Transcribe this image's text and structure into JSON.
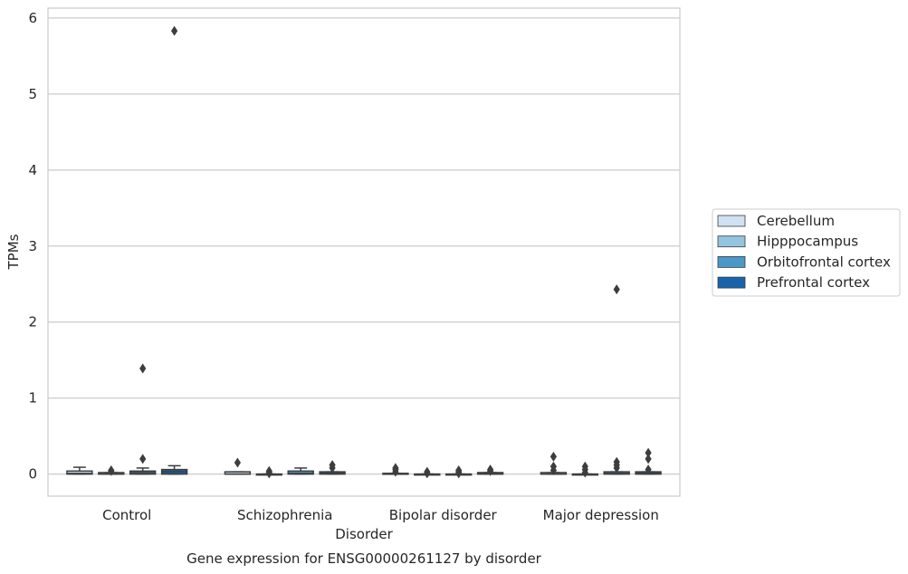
{
  "chart_data": {
    "type": "box",
    "title": "Gene expression for ENSG00000261127 by disorder",
    "xlabel": "Disorder",
    "ylabel": "TPMs",
    "ylim": [
      -0.29,
      6.13
    ],
    "yticks": [
      0,
      1,
      2,
      3,
      4,
      5,
      6
    ],
    "grid": "horizontal",
    "legend_position": "right",
    "categories": [
      "Control",
      "Schizophrenia",
      "Bipolar disorder",
      "Major depression"
    ],
    "series": [
      {
        "name": "Cerebellum",
        "color": "#d0e1f2",
        "boxes": [
          {
            "q1": 0.0,
            "median": 0.01,
            "q3": 0.04,
            "whisker_low": 0.0,
            "whisker_high": 0.09,
            "outliers": []
          },
          {
            "q1": 0.0,
            "median": 0.0,
            "q3": 0.03,
            "whisker_low": 0.0,
            "whisker_high": 0.03,
            "outliers": [
              0.15
            ]
          },
          {
            "q1": 0.0,
            "median": 0.0,
            "q3": 0.01,
            "whisker_low": 0.0,
            "whisker_high": 0.01,
            "outliers": [
              0.03,
              0.06,
              0.08
            ]
          },
          {
            "q1": 0.0,
            "median": 0.0,
            "q3": 0.02,
            "whisker_low": 0.0,
            "whisker_high": 0.02,
            "outliers": [
              0.05,
              0.1,
              0.23
            ]
          }
        ]
      },
      {
        "name": "Hipppocampus",
        "color": "#94c4df",
        "boxes": [
          {
            "q1": 0.0,
            "median": 0.0,
            "q3": 0.02,
            "whisker_low": 0.0,
            "whisker_high": 0.02,
            "outliers": [
              0.04,
              0.05
            ]
          },
          {
            "q1": 0.0,
            "median": 0.0,
            "q3": 0.0,
            "whisker_low": 0.0,
            "whisker_high": 0.0,
            "outliers": [
              0.01,
              0.02,
              0.04
            ]
          },
          {
            "q1": 0.0,
            "median": 0.0,
            "q3": 0.0,
            "whisker_low": 0.0,
            "whisker_high": 0.0,
            "outliers": [
              0.01,
              0.03
            ]
          },
          {
            "q1": 0.0,
            "median": 0.0,
            "q3": 0.0,
            "whisker_low": 0.0,
            "whisker_high": 0.0,
            "outliers": [
              0.02,
              0.06,
              0.1
            ]
          }
        ]
      },
      {
        "name": "Orbitofrontal cortex",
        "color": "#4a98c9",
        "boxes": [
          {
            "q1": 0.0,
            "median": 0.02,
            "q3": 0.04,
            "whisker_low": 0.0,
            "whisker_high": 0.08,
            "outliers": [
              0.2,
              1.39
            ]
          },
          {
            "q1": 0.0,
            "median": 0.01,
            "q3": 0.04,
            "whisker_low": 0.0,
            "whisker_high": 0.08,
            "outliers": []
          },
          {
            "q1": 0.0,
            "median": 0.0,
            "q3": 0.0,
            "whisker_low": 0.0,
            "whisker_high": 0.0,
            "outliers": [
              0.01,
              0.03,
              0.05
            ]
          },
          {
            "q1": 0.0,
            "median": 0.01,
            "q3": 0.03,
            "whisker_low": 0.0,
            "whisker_high": 0.03,
            "outliers": [
              0.08,
              0.12,
              0.16,
              2.43
            ]
          }
        ]
      },
      {
        "name": "Prefrontal cortex",
        "color": "#1764ab",
        "boxes": [
          {
            "q1": 0.0,
            "median": 0.03,
            "q3": 0.06,
            "whisker_low": 0.0,
            "whisker_high": 0.11,
            "outliers": [
              5.83
            ]
          },
          {
            "q1": 0.0,
            "median": 0.01,
            "q3": 0.03,
            "whisker_low": 0.0,
            "whisker_high": 0.03,
            "outliers": [
              0.08,
              0.12
            ]
          },
          {
            "q1": 0.0,
            "median": 0.0,
            "q3": 0.02,
            "whisker_low": 0.0,
            "whisker_high": 0.02,
            "outliers": [
              0.04,
              0.06
            ]
          },
          {
            "q1": 0.0,
            "median": 0.01,
            "q3": 0.03,
            "whisker_low": 0.0,
            "whisker_high": 0.03,
            "outliers": [
              0.06,
              0.2,
              0.28
            ]
          }
        ]
      }
    ]
  }
}
